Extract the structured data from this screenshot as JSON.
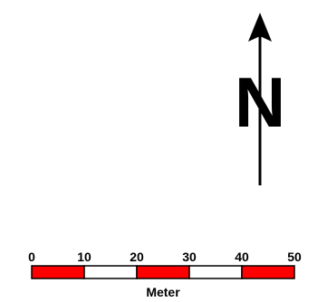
{
  "north_arrow": {
    "letter": "N",
    "color": "#000000"
  },
  "scale_bar": {
    "ticks": [
      "0",
      "10",
      "20",
      "30",
      "40",
      "50"
    ],
    "unit": "Meter",
    "segment_colors": [
      "#ff0000",
      "#ffffff",
      "#ff0000",
      "#ffffff",
      "#ff0000"
    ],
    "outline_color": "#000000"
  }
}
